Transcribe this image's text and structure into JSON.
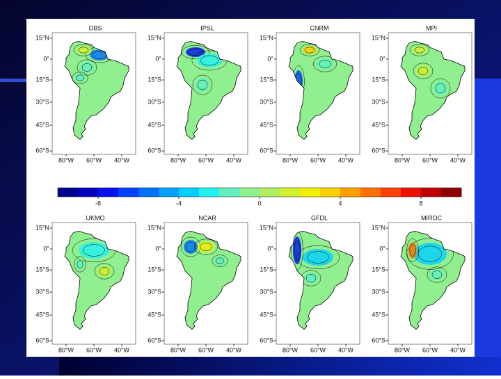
{
  "panels": [
    {
      "title": "OBS"
    },
    {
      "title": "IPSL"
    },
    {
      "title": "CNRM"
    },
    {
      "title": "MPI"
    },
    {
      "title": "UKMO"
    },
    {
      "title": "NCAR"
    },
    {
      "title": "GFDL"
    },
    {
      "title": "MIROC"
    }
  ],
  "lat_labels": [
    "15°N",
    "0°",
    "15°S",
    "30°S",
    "45°S",
    "60°S"
  ],
  "lon_labels": [
    "80°W",
    "60°W",
    "40°W"
  ],
  "colorbar": {
    "lim": [
      -10,
      10
    ],
    "ticks": [
      -8,
      -4,
      0,
      4,
      8
    ],
    "colors": [
      "#00008f",
      "#0000bf",
      "#0010ef",
      "#0040ff",
      "#0070ff",
      "#00a0ff",
      "#00d0ff",
      "#20f0f0",
      "#60f0c0",
      "#90f090",
      "#b0f060",
      "#d0f030",
      "#f0f000",
      "#ffd000",
      "#ffa000",
      "#ff7000",
      "#ff4000",
      "#f01000",
      "#c00000",
      "#900000"
    ]
  }
}
